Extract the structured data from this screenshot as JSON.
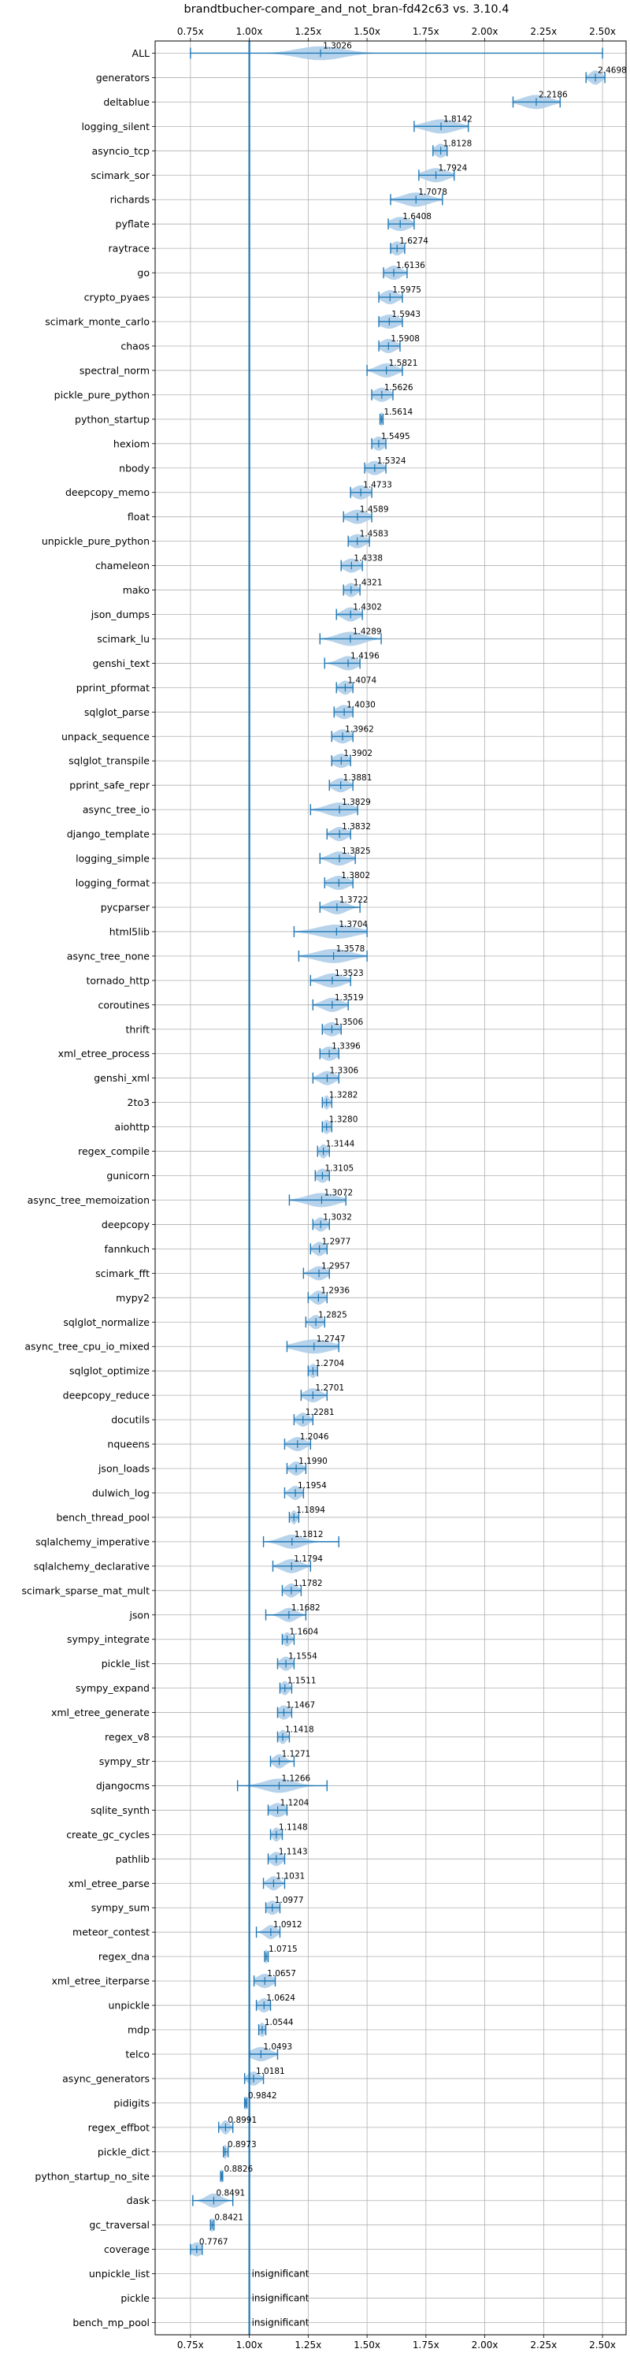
{
  "chart_data": {
    "type": "violin",
    "title": "brandtbucher-compare_and_not_bran-fd42c63 vs. 3.10.4",
    "xlabel": "",
    "ylabel": "",
    "xlim": [
      0.6,
      2.6
    ],
    "xticks": [
      0.75,
      1.0,
      1.25,
      1.5,
      1.75,
      2.0,
      2.25,
      2.5
    ],
    "xtick_labels": [
      "0.75x",
      "1.00x",
      "1.25x",
      "1.50x",
      "1.75x",
      "2.00x",
      "2.25x",
      "2.50x"
    ],
    "reference_line": 1.0,
    "grid": true,
    "colors": {
      "violin": "#a9cbe8",
      "line": "#1f77b4",
      "text": "#000000",
      "grid": "#b0b0b0"
    },
    "insignificant_label": "insignificant",
    "benchmarks": [
      {
        "name": "ALL",
        "label": "1.3026",
        "median": 1.3026,
        "min": 0.75,
        "max": 2.5,
        "spread": 0.12
      },
      {
        "name": "generators",
        "label": "2.4698",
        "median": 2.4698,
        "min": 2.43,
        "max": 2.51,
        "spread": 0.03
      },
      {
        "name": "deltablue",
        "label": "2.2186",
        "median": 2.2186,
        "min": 2.12,
        "max": 2.32,
        "spread": 0.07
      },
      {
        "name": "logging_silent",
        "label": "1.8142",
        "median": 1.8142,
        "min": 1.7,
        "max": 1.93,
        "spread": 0.08
      },
      {
        "name": "asyncio_tcp",
        "label": "1.8128",
        "median": 1.8128,
        "min": 1.78,
        "max": 1.84,
        "spread": 0.03
      },
      {
        "name": "scimark_sor",
        "label": "1.7924",
        "median": 1.7924,
        "min": 1.72,
        "max": 1.87,
        "spread": 0.06
      },
      {
        "name": "richards",
        "label": "1.7078",
        "median": 1.7078,
        "min": 1.6,
        "max": 1.82,
        "spread": 0.07
      },
      {
        "name": "pyflate",
        "label": "1.6408",
        "median": 1.6408,
        "min": 1.59,
        "max": 1.7,
        "spread": 0.05
      },
      {
        "name": "raytrace",
        "label": "1.6274",
        "median": 1.6274,
        "min": 1.6,
        "max": 1.66,
        "spread": 0.03
      },
      {
        "name": "go",
        "label": "1.6136",
        "median": 1.6136,
        "min": 1.57,
        "max": 1.67,
        "spread": 0.04
      },
      {
        "name": "crypto_pyaes",
        "label": "1.5975",
        "median": 1.5975,
        "min": 1.55,
        "max": 1.65,
        "spread": 0.04
      },
      {
        "name": "scimark_monte_carlo",
        "label": "1.5943",
        "median": 1.5943,
        "min": 1.55,
        "max": 1.65,
        "spread": 0.05
      },
      {
        "name": "chaos",
        "label": "1.5908",
        "median": 1.5908,
        "min": 1.55,
        "max": 1.64,
        "spread": 0.04
      },
      {
        "name": "spectral_norm",
        "label": "1.5821",
        "median": 1.5821,
        "min": 1.5,
        "max": 1.65,
        "spread": 0.05
      },
      {
        "name": "pickle_pure_python",
        "label": "1.5626",
        "median": 1.5626,
        "min": 1.52,
        "max": 1.61,
        "spread": 0.04
      },
      {
        "name": "python_startup",
        "label": "1.5614",
        "median": 1.5614,
        "min": 1.555,
        "max": 1.568,
        "spread": 0.008
      },
      {
        "name": "hexiom",
        "label": "1.5495",
        "median": 1.5495,
        "min": 1.52,
        "max": 1.58,
        "spread": 0.03
      },
      {
        "name": "nbody",
        "label": "1.5324",
        "median": 1.5324,
        "min": 1.49,
        "max": 1.58,
        "spread": 0.04
      },
      {
        "name": "deepcopy_memo",
        "label": "1.4733",
        "median": 1.4733,
        "min": 1.43,
        "max": 1.52,
        "spread": 0.04
      },
      {
        "name": "float",
        "label": "1.4589",
        "median": 1.4589,
        "min": 1.4,
        "max": 1.52,
        "spread": 0.05
      },
      {
        "name": "unpickle_pure_python",
        "label": "1.4583",
        "median": 1.4583,
        "min": 1.42,
        "max": 1.51,
        "spread": 0.04
      },
      {
        "name": "chameleon",
        "label": "1.4338",
        "median": 1.4338,
        "min": 1.39,
        "max": 1.48,
        "spread": 0.04
      },
      {
        "name": "mako",
        "label": "1.4321",
        "median": 1.4321,
        "min": 1.4,
        "max": 1.47,
        "spread": 0.03
      },
      {
        "name": "json_dumps",
        "label": "1.4302",
        "median": 1.4302,
        "min": 1.37,
        "max": 1.48,
        "spread": 0.04
      },
      {
        "name": "scimark_lu",
        "label": "1.4289",
        "median": 1.4289,
        "min": 1.3,
        "max": 1.56,
        "spread": 0.07
      },
      {
        "name": "genshi_text",
        "label": "1.4196",
        "median": 1.4196,
        "min": 1.32,
        "max": 1.47,
        "spread": 0.05
      },
      {
        "name": "pprint_pformat",
        "label": "1.4074",
        "median": 1.4074,
        "min": 1.37,
        "max": 1.44,
        "spread": 0.03
      },
      {
        "name": "sqlglot_parse",
        "label": "1.4030",
        "median": 1.403,
        "min": 1.36,
        "max": 1.44,
        "spread": 0.04
      },
      {
        "name": "unpack_sequence",
        "label": "1.3962",
        "median": 1.3962,
        "min": 1.35,
        "max": 1.44,
        "spread": 0.04
      },
      {
        "name": "sqlglot_transpile",
        "label": "1.3902",
        "median": 1.3902,
        "min": 1.35,
        "max": 1.43,
        "spread": 0.04
      },
      {
        "name": "pprint_safe_repr",
        "label": "1.3881",
        "median": 1.3881,
        "min": 1.34,
        "max": 1.44,
        "spread": 0.04
      },
      {
        "name": "async_tree_io",
        "label": "1.3829",
        "median": 1.3829,
        "min": 1.26,
        "max": 1.46,
        "spread": 0.07
      },
      {
        "name": "django_template",
        "label": "1.3832",
        "median": 1.3832,
        "min": 1.33,
        "max": 1.43,
        "spread": 0.04
      },
      {
        "name": "logging_simple",
        "label": "1.3825",
        "median": 1.3825,
        "min": 1.3,
        "max": 1.45,
        "spread": 0.05
      },
      {
        "name": "logging_format",
        "label": "1.3802",
        "median": 1.3802,
        "min": 1.32,
        "max": 1.44,
        "spread": 0.05
      },
      {
        "name": "pycparser",
        "label": "1.3722",
        "median": 1.3722,
        "min": 1.3,
        "max": 1.47,
        "spread": 0.05
      },
      {
        "name": "html5lib",
        "label": "1.3704",
        "median": 1.3704,
        "min": 1.19,
        "max": 1.5,
        "spread": 0.1
      },
      {
        "name": "async_tree_none",
        "label": "1.3578",
        "median": 1.3578,
        "min": 1.21,
        "max": 1.5,
        "spread": 0.09
      },
      {
        "name": "tornado_http",
        "label": "1.3523",
        "median": 1.3523,
        "min": 1.26,
        "max": 1.43,
        "spread": 0.06
      },
      {
        "name": "coroutines",
        "label": "1.3519",
        "median": 1.3519,
        "min": 1.27,
        "max": 1.42,
        "spread": 0.05
      },
      {
        "name": "thrift",
        "label": "1.3506",
        "median": 1.3506,
        "min": 1.31,
        "max": 1.39,
        "spread": 0.04
      },
      {
        "name": "xml_etree_process",
        "label": "1.3396",
        "median": 1.3396,
        "min": 1.3,
        "max": 1.38,
        "spread": 0.04
      },
      {
        "name": "genshi_xml",
        "label": "1.3306",
        "median": 1.3306,
        "min": 1.27,
        "max": 1.38,
        "spread": 0.04
      },
      {
        "name": "2to3",
        "label": "1.3282",
        "median": 1.3282,
        "min": 1.31,
        "max": 1.35,
        "spread": 0.015
      },
      {
        "name": "aiohttp",
        "label": "1.3280",
        "median": 1.328,
        "min": 1.31,
        "max": 1.35,
        "spread": 0.02
      },
      {
        "name": "regex_compile",
        "label": "1.3144",
        "median": 1.3144,
        "min": 1.29,
        "max": 1.34,
        "spread": 0.02
      },
      {
        "name": "gunicorn",
        "label": "1.3105",
        "median": 1.3105,
        "min": 1.28,
        "max": 1.34,
        "spread": 0.03
      },
      {
        "name": "async_tree_memoization",
        "label": "1.3072",
        "median": 1.3072,
        "min": 1.17,
        "max": 1.41,
        "spread": 0.08
      },
      {
        "name": "deepcopy",
        "label": "1.3032",
        "median": 1.3032,
        "min": 1.27,
        "max": 1.34,
        "spread": 0.03
      },
      {
        "name": "fannkuch",
        "label": "1.2977",
        "median": 1.2977,
        "min": 1.26,
        "max": 1.33,
        "spread": 0.03
      },
      {
        "name": "scimark_fft",
        "label": "1.2957",
        "median": 1.2957,
        "min": 1.23,
        "max": 1.34,
        "spread": 0.04
      },
      {
        "name": "mypy2",
        "label": "1.2936",
        "median": 1.2936,
        "min": 1.25,
        "max": 1.33,
        "spread": 0.03
      },
      {
        "name": "sqlglot_normalize",
        "label": "1.2825",
        "median": 1.2825,
        "min": 1.24,
        "max": 1.32,
        "spread": 0.03
      },
      {
        "name": "async_tree_cpu_io_mixed",
        "label": "1.2747",
        "median": 1.2747,
        "min": 1.16,
        "max": 1.38,
        "spread": 0.09
      },
      {
        "name": "sqlglot_optimize",
        "label": "1.2704",
        "median": 1.2704,
        "min": 1.25,
        "max": 1.29,
        "spread": 0.02
      },
      {
        "name": "deepcopy_reduce",
        "label": "1.2701",
        "median": 1.2701,
        "min": 1.22,
        "max": 1.33,
        "spread": 0.04
      },
      {
        "name": "docutils",
        "label": "1.2281",
        "median": 1.2281,
        "min": 1.19,
        "max": 1.27,
        "spread": 0.03
      },
      {
        "name": "nqueens",
        "label": "1.2046",
        "median": 1.2046,
        "min": 1.15,
        "max": 1.26,
        "spread": 0.04
      },
      {
        "name": "json_loads",
        "label": "1.1990",
        "median": 1.199,
        "min": 1.16,
        "max": 1.24,
        "spread": 0.03
      },
      {
        "name": "dulwich_log",
        "label": "1.1954",
        "median": 1.1954,
        "min": 1.15,
        "max": 1.23,
        "spread": 0.03
      },
      {
        "name": "bench_thread_pool",
        "label": "1.1894",
        "median": 1.1894,
        "min": 1.17,
        "max": 1.21,
        "spread": 0.015
      },
      {
        "name": "sqlalchemy_imperative",
        "label": "1.1812",
        "median": 1.1812,
        "min": 1.06,
        "max": 1.38,
        "spread": 0.06
      },
      {
        "name": "sqlalchemy_declarative",
        "label": "1.1794",
        "median": 1.1794,
        "min": 1.1,
        "max": 1.26,
        "spread": 0.05
      },
      {
        "name": "scimark_sparse_mat_mult",
        "label": "1.1782",
        "median": 1.1782,
        "min": 1.14,
        "max": 1.22,
        "spread": 0.03
      },
      {
        "name": "json",
        "label": "1.1682",
        "median": 1.1682,
        "min": 1.07,
        "max": 1.24,
        "spread": 0.04
      },
      {
        "name": "sympy_integrate",
        "label": "1.1604",
        "median": 1.1604,
        "min": 1.14,
        "max": 1.19,
        "spread": 0.02
      },
      {
        "name": "pickle_list",
        "label": "1.1554",
        "median": 1.1554,
        "min": 1.12,
        "max": 1.19,
        "spread": 0.03
      },
      {
        "name": "sympy_expand",
        "label": "1.1511",
        "median": 1.1511,
        "min": 1.13,
        "max": 1.18,
        "spread": 0.02
      },
      {
        "name": "xml_etree_generate",
        "label": "1.1467",
        "median": 1.1467,
        "min": 1.12,
        "max": 1.18,
        "spread": 0.03
      },
      {
        "name": "regex_v8",
        "label": "1.1418",
        "median": 1.1418,
        "min": 1.12,
        "max": 1.17,
        "spread": 0.02
      },
      {
        "name": "sympy_str",
        "label": "1.1271",
        "median": 1.1271,
        "min": 1.09,
        "max": 1.19,
        "spread": 0.03
      },
      {
        "name": "djangocms",
        "label": "1.1266",
        "median": 1.1266,
        "min": 0.95,
        "max": 1.33,
        "spread": 0.08
      },
      {
        "name": "sqlite_synth",
        "label": "1.1204",
        "median": 1.1204,
        "min": 1.08,
        "max": 1.16,
        "spread": 0.04
      },
      {
        "name": "create_gc_cycles",
        "label": "1.1148",
        "median": 1.1148,
        "min": 1.09,
        "max": 1.14,
        "spread": 0.02
      },
      {
        "name": "pathlib",
        "label": "1.1143",
        "median": 1.1143,
        "min": 1.08,
        "max": 1.15,
        "spread": 0.03
      },
      {
        "name": "xml_etree_parse",
        "label": "1.1031",
        "median": 1.1031,
        "min": 1.06,
        "max": 1.15,
        "spread": 0.03
      },
      {
        "name": "sympy_sum",
        "label": "1.0977",
        "median": 1.0977,
        "min": 1.07,
        "max": 1.13,
        "spread": 0.03
      },
      {
        "name": "meteor_contest",
        "label": "1.0912",
        "median": 1.0912,
        "min": 1.03,
        "max": 1.13,
        "spread": 0.03
      },
      {
        "name": "regex_dna",
        "label": "1.0715",
        "median": 1.0715,
        "min": 1.065,
        "max": 1.08,
        "spread": 0.008
      },
      {
        "name": "xml_etree_iterparse",
        "label": "1.0657",
        "median": 1.0657,
        "min": 1.02,
        "max": 1.11,
        "spread": 0.04
      },
      {
        "name": "unpickle",
        "label": "1.0624",
        "median": 1.0624,
        "min": 1.03,
        "max": 1.09,
        "spread": 0.03
      },
      {
        "name": "mdp",
        "label": "1.0544",
        "median": 1.0544,
        "min": 1.04,
        "max": 1.07,
        "spread": 0.015
      },
      {
        "name": "telco",
        "label": "1.0493",
        "median": 1.0493,
        "min": 1.0,
        "max": 1.12,
        "spread": 0.05
      },
      {
        "name": "async_generators",
        "label": "1.0181",
        "median": 1.0181,
        "min": 0.98,
        "max": 1.06,
        "spread": 0.03
      },
      {
        "name": "pidigits",
        "label": "0.9842",
        "median": 0.9842,
        "min": 0.98,
        "max": 0.99,
        "spread": 0.005
      },
      {
        "name": "regex_effbot",
        "label": "0.8991",
        "median": 0.8991,
        "min": 0.87,
        "max": 0.93,
        "spread": 0.02
      },
      {
        "name": "pickle_dict",
        "label": "0.8973",
        "median": 0.8973,
        "min": 0.89,
        "max": 0.91,
        "spread": 0.01
      },
      {
        "name": "python_startup_no_site",
        "label": "0.8826",
        "median": 0.8826,
        "min": 0.878,
        "max": 0.887,
        "spread": 0.004
      },
      {
        "name": "dask",
        "label": "0.8491",
        "median": 0.8491,
        "min": 0.76,
        "max": 0.93,
        "spread": 0.04
      },
      {
        "name": "gc_traversal",
        "label": "0.8421",
        "median": 0.8421,
        "min": 0.835,
        "max": 0.85,
        "spread": 0.008
      },
      {
        "name": "coverage",
        "label": "0.7767",
        "median": 0.7767,
        "min": 0.75,
        "max": 0.8,
        "spread": 0.03
      },
      {
        "name": "unpickle_list",
        "label": "",
        "median": null,
        "min": null,
        "max": null,
        "spread": null
      },
      {
        "name": "pickle",
        "label": "",
        "median": null,
        "min": null,
        "max": null,
        "spread": null
      },
      {
        "name": "bench_mp_pool",
        "label": "",
        "median": null,
        "min": null,
        "max": null,
        "spread": null
      }
    ]
  }
}
